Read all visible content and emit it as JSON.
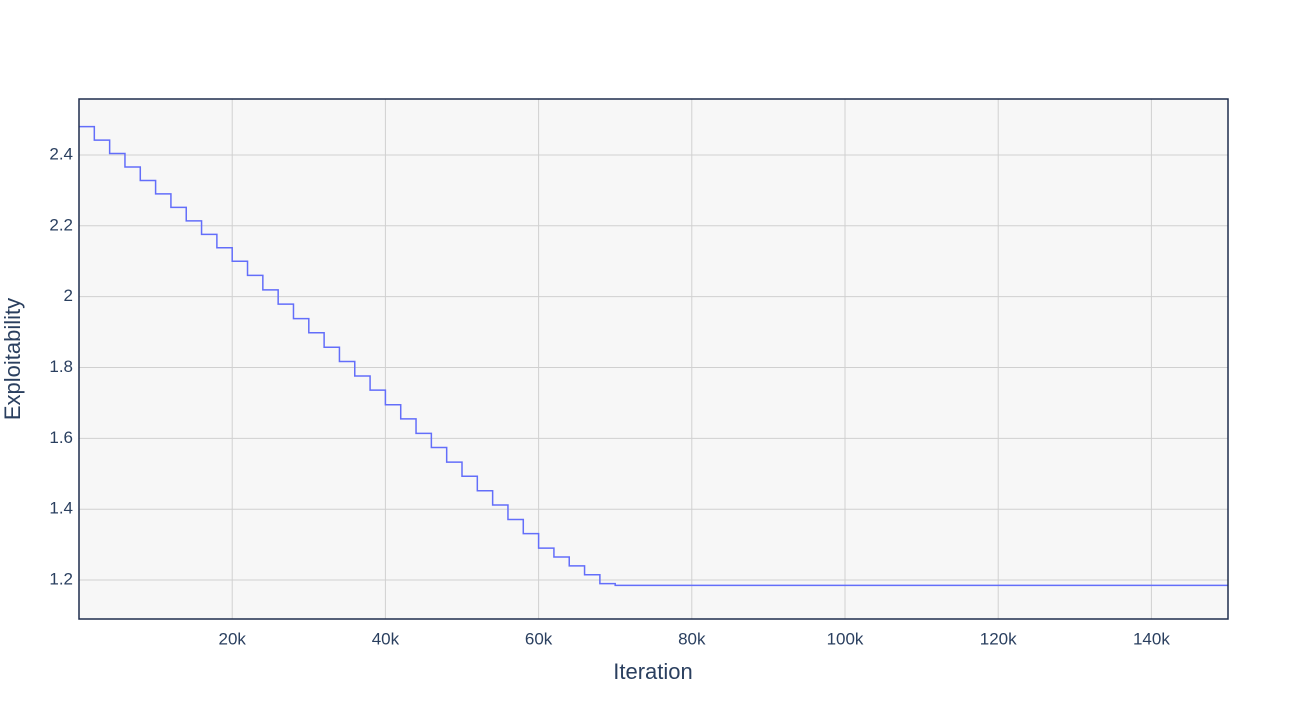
{
  "chart_data": {
    "type": "line",
    "line_shape": "hv",
    "x_label": "Iteration",
    "y_label": "Exploitability",
    "x": [
      0,
      2000,
      4000,
      6000,
      8000,
      10000,
      12000,
      14000,
      16000,
      18000,
      20000,
      22000,
      24000,
      26000,
      28000,
      30000,
      32000,
      34000,
      36000,
      38000,
      40000,
      42000,
      44000,
      46000,
      48000,
      50000,
      52000,
      54000,
      56000,
      58000,
      60000,
      62000,
      64000,
      66000,
      68000,
      70000,
      72000,
      74000,
      76000,
      78000,
      80000,
      82000,
      84000,
      86000,
      88000,
      90000,
      92000,
      94000,
      96000,
      98000,
      100000,
      102000,
      104000,
      106000,
      108000,
      110000,
      112000,
      114000,
      116000,
      118000,
      120000,
      122000,
      124000,
      126000,
      128000,
      130000,
      132000,
      134000,
      136000,
      138000,
      140000,
      142000,
      144000,
      146000,
      148000,
      150000
    ],
    "series": [
      {
        "color": "#636efa",
        "values": [
          2.48,
          2.442,
          2.404,
          2.366,
          2.328,
          2.29,
          2.252,
          2.214,
          2.176,
          2.138,
          2.1,
          2.06,
          2.019,
          1.979,
          1.938,
          1.898,
          1.857,
          1.817,
          1.776,
          1.736,
          1.695,
          1.655,
          1.614,
          1.574,
          1.533,
          1.493,
          1.452,
          1.412,
          1.371,
          1.331,
          1.29,
          1.265,
          1.24,
          1.215,
          1.19,
          1.185,
          1.185,
          1.185,
          1.185,
          1.185,
          1.185,
          1.185,
          1.185,
          1.185,
          1.185,
          1.185,
          1.185,
          1.185,
          1.185,
          1.185,
          1.185,
          1.185,
          1.185,
          1.185,
          1.185,
          1.185,
          1.185,
          1.185,
          1.185,
          1.185,
          1.185,
          1.185,
          1.185,
          1.185,
          1.185,
          1.185,
          1.185,
          1.185,
          1.185,
          1.185,
          1.185,
          1.185,
          1.185,
          1.185,
          1.185,
          1.185
        ]
      }
    ],
    "xlim": [
      0,
      150000
    ],
    "xticks": [
      {
        "value": 20000,
        "label": "20k"
      },
      {
        "value": 40000,
        "label": "40k"
      },
      {
        "value": 60000,
        "label": "60k"
      },
      {
        "value": 80000,
        "label": "80k"
      },
      {
        "value": 100000,
        "label": "100k"
      },
      {
        "value": 120000,
        "label": "120k"
      },
      {
        "value": 140000,
        "label": "140k"
      }
    ],
    "ylim": [
      1.09,
      2.558
    ],
    "yticks": [
      1.2,
      1.4,
      1.6,
      1.8,
      2,
      2.2,
      2.4
    ],
    "grid": true
  }
}
